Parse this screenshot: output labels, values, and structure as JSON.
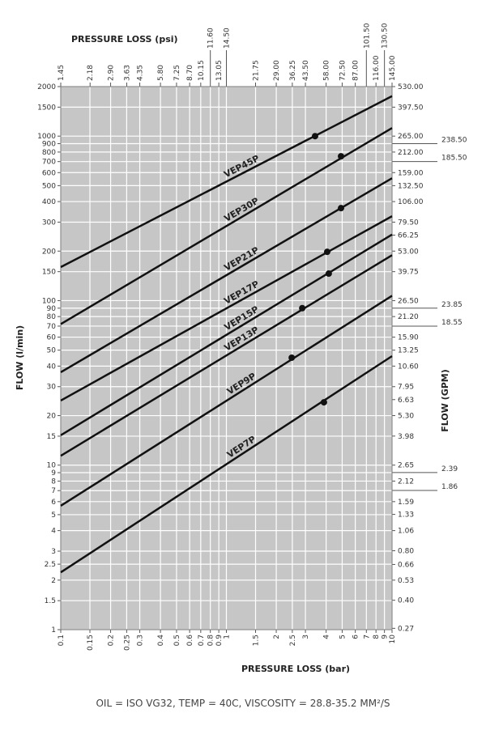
{
  "chart_data": {
    "type": "line",
    "x_label": "PRESSURE LOSS (bar)",
    "x2_label": "PRESSURE LOSS (psi)",
    "y_label": "FLOW (l/min)",
    "y2_label": "FLOW (GPM)",
    "note": "OIL = ISO VG32, TEMP = 40C, VISCOSITY = 28.8-35.2 MM²/S",
    "xscale": "log",
    "yscale": "log",
    "grid": true,
    "xlim": [
      0.1,
      10
    ],
    "xticks": [
      0.1,
      0.15,
      0.2,
      0.25,
      0.3,
      0.4,
      0.5,
      0.6,
      0.7,
      0.8,
      0.9,
      1,
      1.5,
      2,
      2.5,
      3,
      4,
      5,
      6,
      7,
      8,
      9,
      10
    ],
    "x2lim": [
      1.45,
      145
    ],
    "x2ticks": [
      1.45,
      2.18,
      {
        "value": 2.9,
        "label": "2.90"
      },
      3.63,
      4.35,
      {
        "value": 5.8,
        "label": "5.80"
      },
      7.25,
      {
        "value": 8.7,
        "label": "8.70"
      },
      10.15,
      {
        "value": 11.6,
        "label": "11.60"
      },
      13.05,
      {
        "value": 14.5,
        "label": "14.50"
      },
      21.75,
      {
        "value": 29,
        "label": "29.00"
      },
      36.25,
      {
        "value": 43.5,
        "label": "43.50"
      },
      {
        "value": 58,
        "label": "58.00"
      },
      {
        "value": 72.5,
        "label": "72.50"
      },
      {
        "value": 87,
        "label": "87.00"
      },
      {
        "value": 101.5,
        "label": "101.50"
      },
      {
        "value": 116,
        "label": "116.00"
      },
      {
        "value": 130.5,
        "label": "130.50"
      },
      {
        "value": 145,
        "label": "145.00"
      }
    ],
    "ylim": [
      1,
      2000
    ],
    "yticks": [
      1,
      1.5,
      2,
      2.5,
      3,
      4,
      5,
      6,
      7,
      8,
      9,
      10,
      15,
      20,
      30,
      40,
      50,
      60,
      70,
      80,
      90,
      100,
      150,
      200,
      300,
      400,
      500,
      600,
      700,
      800,
      900,
      1000,
      1500,
      2000
    ],
    "y2lim": [
      0.265,
      530
    ],
    "y2ticks": [
      {
        "value": 530,
        "label": "530.00"
      },
      {
        "value": 397.5,
        "label": "397.50"
      },
      {
        "value": 265,
        "label": "265.00"
      },
      {
        "value": 238.5,
        "label": "238.50"
      },
      {
        "value": 212,
        "label": "212.00"
      },
      {
        "value": 185.5,
        "label": "185.50"
      },
      {
        "value": 159,
        "label": "159.00"
      },
      {
        "value": 132.5,
        "label": "132.50"
      },
      {
        "value": 106,
        "label": "106.00"
      },
      {
        "value": 79.5,
        "label": "79.50"
      },
      66.25,
      {
        "value": 53,
        "label": "53.00"
      },
      39.75,
      {
        "value": 26.5,
        "label": "26.50"
      },
      23.85,
      {
        "value": 21.2,
        "label": "21.20"
      },
      18.55,
      {
        "value": 15.9,
        "label": "15.90"
      },
      13.25,
      {
        "value": 10.6,
        "label": "10.60"
      },
      7.95,
      6.63,
      {
        "value": 5.3,
        "label": "5.30"
      },
      3.98,
      2.65,
      2.39,
      2.12,
      1.86,
      1.59,
      1.33,
      1.06,
      {
        "value": 0.8,
        "label": "0.80"
      },
      0.66,
      0.53,
      {
        "value": 0.4,
        "label": "0.40"
      },
      0.27
    ],
    "series": [
      {
        "name": "VEP45P",
        "color": "#111111",
        "x": [
          0.1,
          10
        ],
        "values": [
          160,
          1750
        ],
        "marker_x": 3.43,
        "marker_y": 1000
      },
      {
        "name": "VEP30P",
        "color": "#111111",
        "x": [
          0.1,
          10
        ],
        "values": [
          72,
          1120
        ],
        "marker_x": 4.92,
        "marker_y": 754
      },
      {
        "name": "VEP21P",
        "color": "#111111",
        "x": [
          0.1,
          10
        ],
        "values": [
          36.7,
          555
        ],
        "marker_x": 4.92,
        "marker_y": 365
      },
      {
        "name": "VEP17P",
        "color": "#111111",
        "x": [
          0.1,
          10
        ],
        "values": [
          24.7,
          326
        ],
        "marker_x": 4.06,
        "marker_y": 198
      },
      {
        "name": "VEP15P",
        "color": "#111111",
        "x": [
          0.1,
          10
        ],
        "values": [
          15.2,
          252
        ],
        "marker_x": 4.15,
        "marker_y": 146
      },
      {
        "name": "VEP13P",
        "color": "#111111",
        "x": [
          0.1,
          10
        ],
        "values": [
          11.4,
          189
        ],
        "marker_x": 2.87,
        "marker_y": 90
      },
      {
        "name": "VEP9P",
        "color": "#111111",
        "x": [
          0.1,
          10
        ],
        "values": [
          5.66,
          107
        ],
        "marker_x": 2.48,
        "marker_y": 45
      },
      {
        "name": "VEP7P",
        "color": "#111111",
        "x": [
          0.1,
          10
        ],
        "values": [
          2.23,
          46
        ],
        "marker_x": 3.88,
        "marker_y": 24.1
      }
    ]
  }
}
